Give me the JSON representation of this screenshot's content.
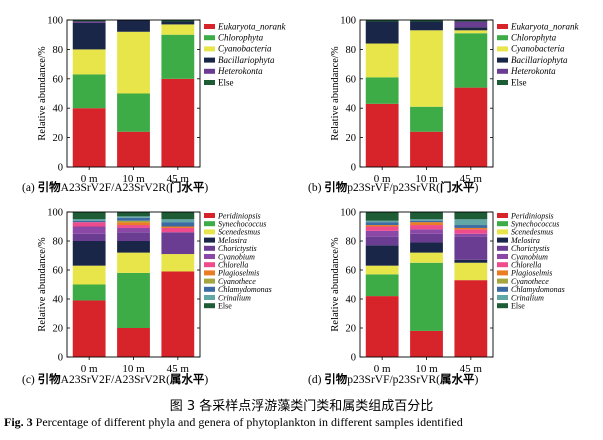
{
  "colors": {
    "Eukaryota_norank": "#d6242a",
    "Chlorophyta": "#3dab46",
    "Cyanobacteria": "#e8e54a",
    "Bacillariophyta": "#192648",
    "Heterokonta": "#6a3d92",
    "Else": "#1d5c35",
    "Peridiniopsis": "#d6242a",
    "Synechococcus": "#3dab46",
    "Scenedesmus": "#e8e54a",
    "Melosira": "#192648",
    "Chorictystis": "#6a3d92",
    "Cyanobium": "#8b48a6",
    "Chlorella": "#ee4c8c",
    "Plagioselmis": "#ea7c24",
    "Cyanothece": "#a6a640",
    "Chlamydomonas": "#3c6aa2",
    "Crinalium": "#62a6a6",
    "Else2": "#1d5c35"
  },
  "chart_data": [
    {
      "panel": "a",
      "type": "bar",
      "stacked": true,
      "categories": [
        "0 m",
        "10 m",
        "45 m"
      ],
      "ylabel": "Relative abundance/%",
      "ylim": [
        0,
        100
      ],
      "yticks": [
        0,
        20,
        40,
        60,
        80,
        100
      ],
      "caption_prefix": "(a) ",
      "caption_zh1": "引物",
      "caption_primer": "A23SrV2F/A23SrV2R(",
      "caption_zh2": "门水平",
      "caption_end": ")",
      "legend": [
        "Eukaryota_norank",
        "Chlorophyta",
        "Cyanobacteria",
        "Bacillariophyta",
        "Heterokonta",
        "Else"
      ],
      "series": [
        {
          "name": "Eukaryota_norank",
          "values": [
            40,
            24,
            60
          ]
        },
        {
          "name": "Chlorophyta",
          "values": [
            23,
            26,
            30
          ]
        },
        {
          "name": "Cyanobacteria",
          "values": [
            17,
            42,
            7
          ]
        },
        {
          "name": "Bacillariophyta",
          "values": [
            18,
            8,
            2
          ]
        },
        {
          "name": "Heterokonta",
          "values": [
            1,
            0,
            0
          ]
        },
        {
          "name": "Else",
          "values": [
            1,
            0,
            1
          ]
        }
      ]
    },
    {
      "panel": "b",
      "type": "bar",
      "stacked": true,
      "categories": [
        "0 m",
        "10 m",
        "45 m"
      ],
      "ylabel": "Relative abundance/%",
      "ylim": [
        0,
        100
      ],
      "yticks": [
        0,
        20,
        40,
        60,
        80,
        100
      ],
      "caption_prefix": "(b) ",
      "caption_zh1": "引物",
      "caption_primer": "p23SrVF/p23SrVR(",
      "caption_zh2": "门水平",
      "caption_end": ")",
      "legend": [
        "Eukaryota_norank",
        "Chlorophyta",
        "Cyanobacteria",
        "Bacillariophyta",
        "Heterokonta",
        "Else"
      ],
      "series": [
        {
          "name": "Eukaryota_norank",
          "values": [
            43,
            24,
            54
          ]
        },
        {
          "name": "Chlorophyta",
          "values": [
            18,
            17,
            37
          ]
        },
        {
          "name": "Cyanobacteria",
          "values": [
            23,
            52,
            2
          ]
        },
        {
          "name": "Bacillariophyta",
          "values": [
            15,
            6,
            2
          ]
        },
        {
          "name": "Heterokonta",
          "values": [
            0,
            0,
            4
          ]
        },
        {
          "name": "Else",
          "values": [
            1,
            1,
            1
          ]
        }
      ]
    },
    {
      "panel": "c",
      "type": "bar",
      "stacked": true,
      "categories": [
        "0 m",
        "10 m",
        "45 m"
      ],
      "ylabel": "Relative abundance/%",
      "ylim": [
        0,
        100
      ],
      "yticks": [
        0,
        20,
        40,
        60,
        80,
        100
      ],
      "caption_prefix": "(c) ",
      "caption_zh1": "引物",
      "caption_primer": "A23SrV2F/A23SrV2R(",
      "caption_zh2": "属水平",
      "caption_end": ")",
      "legend": [
        "Peridiniopsis",
        "Synechococcus",
        "Scenedesmus",
        "Melosira",
        "Chorictystis",
        "Cyanobium",
        "Chlorella",
        "Plagioselmis",
        "Cyanothece",
        "Chlamydomonas",
        "Crinalium",
        "Else"
      ],
      "series": [
        {
          "name": "Peridiniopsis",
          "values": [
            39,
            20,
            59
          ]
        },
        {
          "name": "Synechococcus",
          "values": [
            11,
            38,
            0
          ]
        },
        {
          "name": "Scenedesmus",
          "values": [
            13,
            14,
            12
          ]
        },
        {
          "name": "Melosira",
          "values": [
            17,
            8,
            0
          ]
        },
        {
          "name": "Chorictystis",
          "values": [
            5,
            6,
            15
          ]
        },
        {
          "name": "Cyanobium",
          "values": [
            5,
            3,
            0
          ]
        },
        {
          "name": "Chlorella",
          "values": [
            3,
            2,
            3
          ]
        },
        {
          "name": "Plagioselmis",
          "values": [
            0,
            2,
            1
          ]
        },
        {
          "name": "Cyanothece",
          "values": [
            0,
            1,
            0
          ]
        },
        {
          "name": "Chlamydomonas",
          "values": [
            1,
            2,
            3
          ]
        },
        {
          "name": "Crinalium",
          "values": [
            1,
            1,
            2
          ]
        },
        {
          "name": "Else",
          "values": [
            5,
            3,
            5
          ]
        }
      ]
    },
    {
      "panel": "d",
      "type": "bar",
      "stacked": true,
      "categories": [
        "0 m",
        "10 m",
        "45 m"
      ],
      "ylabel": "Relative abundance/%",
      "ylim": [
        0,
        100
      ],
      "yticks": [
        0,
        20,
        40,
        60,
        80,
        100
      ],
      "caption_prefix": "(d) ",
      "caption_zh1": "引物",
      "caption_primer": "p23SrVF/p23SrVR(",
      "caption_zh2": "属水平",
      "caption_end": ")",
      "legend": [
        "Peridiniopsis",
        "Synechococcus",
        "Scenedesmus",
        "Melosira",
        "Chorictystis",
        "Cyanobium",
        "Chlorella",
        "Plagioselmis",
        "Cyanothece",
        "Chlamydomonas",
        "Crinalium",
        "Else"
      ],
      "series": [
        {
          "name": "Peridiniopsis",
          "values": [
            42,
            18,
            53
          ]
        },
        {
          "name": "Synechococcus",
          "values": [
            15,
            47,
            0
          ]
        },
        {
          "name": "Scenedesmus",
          "values": [
            6,
            7,
            12
          ]
        },
        {
          "name": "Melosira",
          "values": [
            14,
            7,
            2
          ]
        },
        {
          "name": "Chorictystis",
          "values": [
            6,
            6,
            16
          ]
        },
        {
          "name": "Cyanobium",
          "values": [
            4,
            3,
            2
          ]
        },
        {
          "name": "Chlorella",
          "values": [
            3,
            3,
            3
          ]
        },
        {
          "name": "Plagioselmis",
          "values": [
            1,
            2,
            1
          ]
        },
        {
          "name": "Cyanothece",
          "values": [
            0,
            0,
            0
          ]
        },
        {
          "name": "Chlamydomonas",
          "values": [
            2,
            1,
            2
          ]
        },
        {
          "name": "Crinalium",
          "values": [
            1,
            1,
            4
          ]
        },
        {
          "name": "Else",
          "values": [
            6,
            5,
            5
          ]
        }
      ]
    }
  ],
  "figure": {
    "title_zh": "图 3   各采样点浮游藻类门类和属类组成百分比",
    "label_en": "Fig. 3",
    "title_en": "  Percentage of different phyla and genera of phytoplankton in different samples identified"
  }
}
